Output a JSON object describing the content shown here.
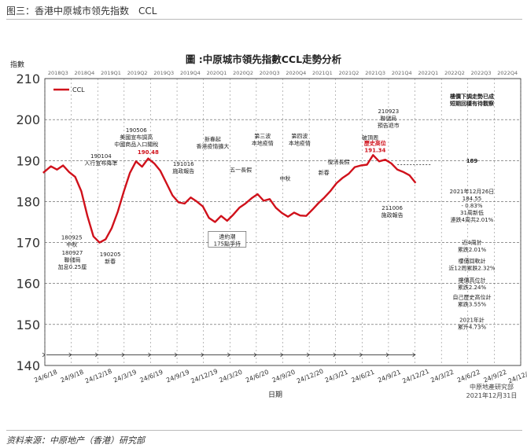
{
  "caption": "图三：香港中原城市领先指数　CCL",
  "source": "资料来源：中原地产（香港）研究部",
  "chart_data": {
    "type": "line",
    "title": "圖 :中原城市領先指數CCL走勢分析",
    "ylabel": "指數",
    "xlabel": "日期",
    "ylim": [
      140,
      210
    ],
    "yticks": [
      140,
      150,
      160,
      170,
      180,
      190,
      200,
      210
    ],
    "grid": "horizontal, dashed",
    "legend": "top-left",
    "colors": {
      "series": "#d0111b",
      "grid": "#555555",
      "text": "#222222"
    },
    "series": [
      {
        "name": "CCL",
        "points": [
          [
            "2018-06-18",
            187.0
          ],
          [
            "2018-07-15",
            188.6
          ],
          [
            "2018-08-05",
            187.8
          ],
          [
            "2018-08-26",
            188.8
          ],
          [
            "2018-09-16",
            187.2
          ],
          [
            "2018-10-07",
            186.0
          ],
          [
            "2018-10-28",
            182.5
          ],
          [
            "2018-11-18",
            176.5
          ],
          [
            "2018-12-09",
            171.5
          ],
          [
            "2018-12-30",
            170.0
          ],
          [
            "2019-01-20",
            170.8
          ],
          [
            "2019-02-10",
            173.5
          ],
          [
            "2019-03-03",
            177.5
          ],
          [
            "2019-03-24",
            182.5
          ],
          [
            "2019-04-14",
            187.0
          ],
          [
            "2019-05-05",
            189.8
          ],
          [
            "2019-05-26",
            188.5
          ],
          [
            "2019-06-16",
            190.5
          ],
          [
            "2019-07-07",
            189.3
          ],
          [
            "2019-07-28",
            187.5
          ],
          [
            "2019-08-18",
            184.5
          ],
          [
            "2019-09-08",
            181.5
          ],
          [
            "2019-09-29",
            179.8
          ],
          [
            "2019-10-20",
            179.5
          ],
          [
            "2019-11-10",
            181.0
          ],
          [
            "2019-12-01",
            180.0
          ],
          [
            "2019-12-22",
            178.8
          ],
          [
            "2020-01-12",
            176.0
          ],
          [
            "2020-02-02",
            175.0
          ],
          [
            "2020-02-23",
            176.5
          ],
          [
            "2020-03-15",
            175.3
          ],
          [
            "2020-04-05",
            176.8
          ],
          [
            "2020-04-26",
            178.5
          ],
          [
            "2020-05-17",
            179.5
          ],
          [
            "2020-06-07",
            180.8
          ],
          [
            "2020-06-28",
            181.8
          ],
          [
            "2020-07-19",
            180.2
          ],
          [
            "2020-08-09",
            180.6
          ],
          [
            "2020-08-30",
            178.5
          ],
          [
            "2020-09-20",
            177.2
          ],
          [
            "2020-10-11",
            176.3
          ],
          [
            "2020-11-01",
            177.3
          ],
          [
            "2020-11-22",
            176.6
          ],
          [
            "2020-12-13",
            176.5
          ],
          [
            "2021-01-03",
            178.0
          ],
          [
            "2021-01-24",
            179.6
          ],
          [
            "2021-02-14",
            181.0
          ],
          [
            "2021-03-07",
            182.6
          ],
          [
            "2021-03-28",
            184.5
          ],
          [
            "2021-04-18",
            185.8
          ],
          [
            "2021-05-09",
            186.8
          ],
          [
            "2021-05-30",
            188.4
          ],
          [
            "2021-06-20",
            188.8
          ],
          [
            "2021-07-11",
            189.0
          ],
          [
            "2021-08-01",
            191.34
          ],
          [
            "2021-08-22",
            189.8
          ],
          [
            "2021-09-12",
            190.2
          ],
          [
            "2021-10-03",
            189.3
          ],
          [
            "2021-10-24",
            187.8
          ],
          [
            "2021-11-14",
            187.2
          ],
          [
            "2021-12-05",
            186.4
          ],
          [
            "2021-12-26",
            184.55
          ]
        ]
      }
    ],
    "quarters": [
      "2018Q3",
      "2018Q4",
      "2019Q1",
      "2019Q2",
      "2019Q3",
      "2019Q4",
      "2020Q1",
      "2020Q2",
      "2020Q3",
      "2020Q4",
      "2021Q1",
      "2021Q2",
      "2021Q3",
      "2021Q4",
      "2022Q1",
      "2022Q2",
      "2022Q3",
      "2022Q4"
    ],
    "xtick_labels": [
      "24/6/18",
      "24/9/18",
      "24/12/18",
      "24/3/19",
      "24/6/19",
      "24/9/19",
      "24/12/19",
      "24/3/20",
      "24/6/20",
      "24/9/20",
      "24/12/20",
      "24/3/21",
      "24/6/21",
      "24/9/21",
      "24/12/21",
      "24/3/22",
      "24/6/22",
      "24/9/22",
      "24/12/22"
    ],
    "annotations": [
      {
        "lines": [
          "180925",
          "中秋"
        ],
        "date": "2018-09-25",
        "y": 170.8
      },
      {
        "lines": [
          "180927",
          "聯儲局",
          "加息0.25厘"
        ],
        "date": "2018-09-27",
        "y": 167.0
      },
      {
        "lines": [
          "190104",
          "人行宣布降準"
        ],
        "date": "2019-01-04",
        "y": 190.6
      },
      {
        "lines": [
          "190205",
          "新春"
        ],
        "date": "2019-02-05",
        "y": 166.7
      },
      {
        "lines": [
          "190506",
          "美國宣布調高",
          "中國商品入口關稅"
        ],
        "date": "2019-05-06",
        "y": 197.0
      },
      {
        "lines": [
          "190.48"
        ],
        "date": "2019-06-16",
        "y": 191.6,
        "color": "#d0111b"
      },
      {
        "lines": [
          "191016",
          "施政報告"
        ],
        "date": "2019-10-16",
        "y": 188.7
      },
      {
        "lines": [
          "新春起",
          "香港疫情擴大"
        ],
        "date": "2020-01-25",
        "y": 194.8
      },
      {
        "lines": [
          "五一長假"
        ],
        "date": "2020-05-01",
        "y": 187.3
      },
      {
        "lines": [
          "第三波",
          "本地疫情"
        ],
        "date": "2020-07-15",
        "y": 195.5
      },
      {
        "lines": [
          "第四波",
          "本地疫情"
        ],
        "date": "2020-11-20",
        "y": 195.5
      },
      {
        "lines": [
          "中秋"
        ],
        "date": "2020-10-01",
        "y": 185.2
      },
      {
        "lines": [
          "新春"
        ],
        "date": "2021-02-12",
        "y": 186.6
      },
      {
        "lines": [
          "復活長假"
        ],
        "date": "2021-04-04",
        "y": 189.2
      },
      {
        "lines": [
          "210923",
          "聯儲局",
          "預告退市"
        ],
        "date": "2021-09-23",
        "y": 201.6
      },
      {
        "lines": [
          "破頂周"
        ],
        "date": "2021-07-22",
        "y": 195.1
      },
      {
        "lines": [
          "歷史高位",
          "191.34"
        ],
        "date": "2021-08-08",
        "y": 193.8,
        "color": "#d0111b"
      },
      {
        "lines": [
          "211006",
          "施政報告"
        ],
        "date": "2021-10-06",
        "y": 178.0
      }
    ],
    "event_boxes": [
      {
        "date": "2020-03-15",
        "y": 171.0,
        "lines": [
          "違約潮",
          "175點爭持"
        ]
      }
    ],
    "right_notes": [
      {
        "lines": [
          "樓價下調走勢已成",
          "短期回穩有待觀察"
        ],
        "bold": true,
        "y": 205.2
      },
      {
        "lines": [
          "189"
        ],
        "bold": true,
        "y": 189.5
      },
      {
        "lines": [
          "2021年12月26日",
          "184.55",
          "- 0.83%",
          "31周新低",
          "連跌4周共2.01%"
        ],
        "y": 182.0
      },
      {
        "lines": [
          "近4周計",
          "累跌2.01%"
        ],
        "y": 169.5
      },
      {
        "lines": [
          "樓價回軟計",
          "近12周累跌2.32%"
        ],
        "y": 165.0
      },
      {
        "lines": [
          "樓價高位計",
          "累跌2.24%"
        ],
        "y": 160.3
      },
      {
        "lines": [
          "自己歷史高位計",
          "累跌3.55%"
        ],
        "y": 156.2
      },
      {
        "lines": [
          "2021年計",
          "累升4.73%"
        ],
        "y": 150.6
      }
    ],
    "reference_level": {
      "value": 189,
      "from": "2021-10-24"
    },
    "credit": [
      "中原地產研究部",
      "2021年12月31日"
    ]
  }
}
